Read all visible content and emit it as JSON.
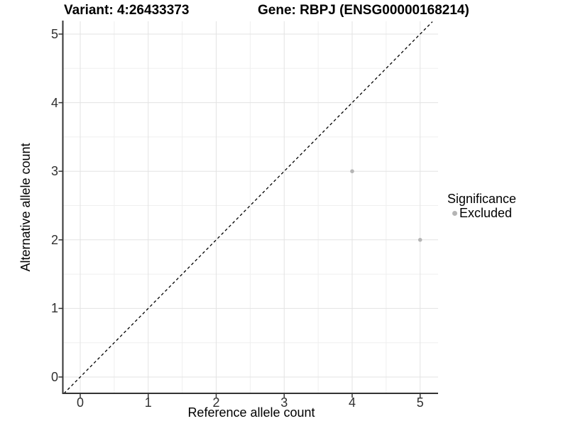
{
  "chart_data": {
    "type": "scatter",
    "titles": [
      "Variant: 4:26433373",
      "Gene: RBPJ (ENSG00000168214)"
    ],
    "xlabel": "Reference allele count",
    "ylabel": "Alternative allele count",
    "x_ticks": [
      0,
      1,
      2,
      3,
      4,
      5
    ],
    "y_ticks": [
      0,
      1,
      2,
      3,
      4,
      5
    ],
    "xlim": [
      -0.25,
      5.3
    ],
    "ylim": [
      -0.24,
      5.18
    ],
    "grid": "major+minor",
    "minor_grid_step": 0.5,
    "reference_line": {
      "type": "identity",
      "equation": "y = x",
      "style": "dashed",
      "color": "#000000"
    },
    "series": [
      {
        "name": "Excluded",
        "color": "#b5b5b5",
        "points": [
          [
            4,
            3
          ],
          [
            5,
            2
          ]
        ]
      }
    ],
    "legend": {
      "title": "Significance",
      "position": "right",
      "entries": [
        {
          "label": "Excluded",
          "color": "#b5b5b5",
          "marker": "circle"
        }
      ]
    }
  },
  "colors": {
    "background": "#ffffff",
    "axis_line": "#333333",
    "grid_major": "#e3e3e3",
    "grid_minor": "#efefef",
    "tick_mark": "#333333",
    "point": "#b5b5b5"
  }
}
